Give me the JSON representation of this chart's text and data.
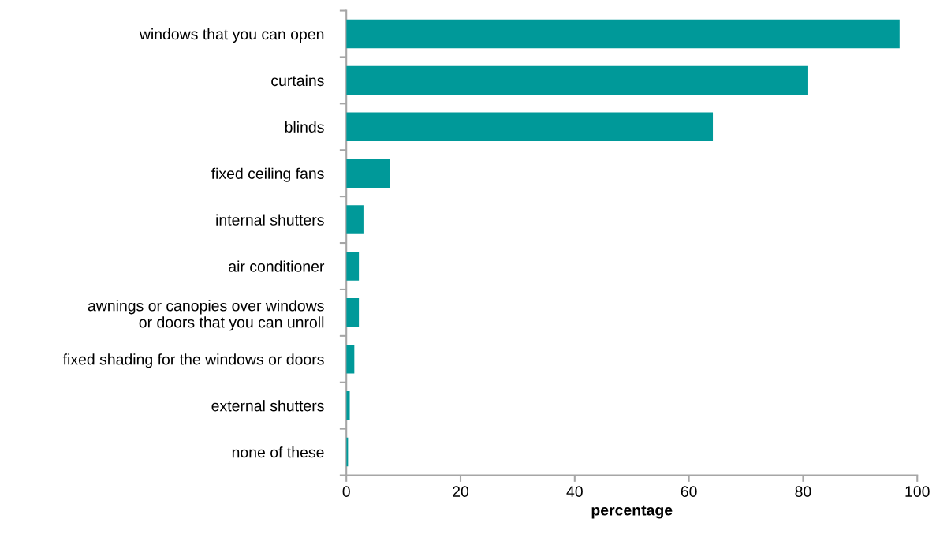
{
  "chart_data": {
    "type": "bar",
    "orientation": "horizontal",
    "xlabel": "percentage",
    "categories": [
      "windows that you can open",
      "curtains",
      "blinds",
      "fixed ceiling fans",
      "internal shutters",
      "air conditioner",
      "awnings or canopies over windows\nor doors that you can unroll",
      "fixed shading for the windows or doors",
      "external shutters",
      "none of these"
    ],
    "values": [
      96.9,
      80.9,
      64.2,
      7.6,
      3.0,
      2.2,
      2.2,
      1.4,
      0.6,
      0.3
    ],
    "color": "#009999",
    "xlim": [
      0,
      100
    ],
    "xticks": [
      0,
      20,
      40,
      60,
      80,
      100
    ],
    "grid": false
  }
}
